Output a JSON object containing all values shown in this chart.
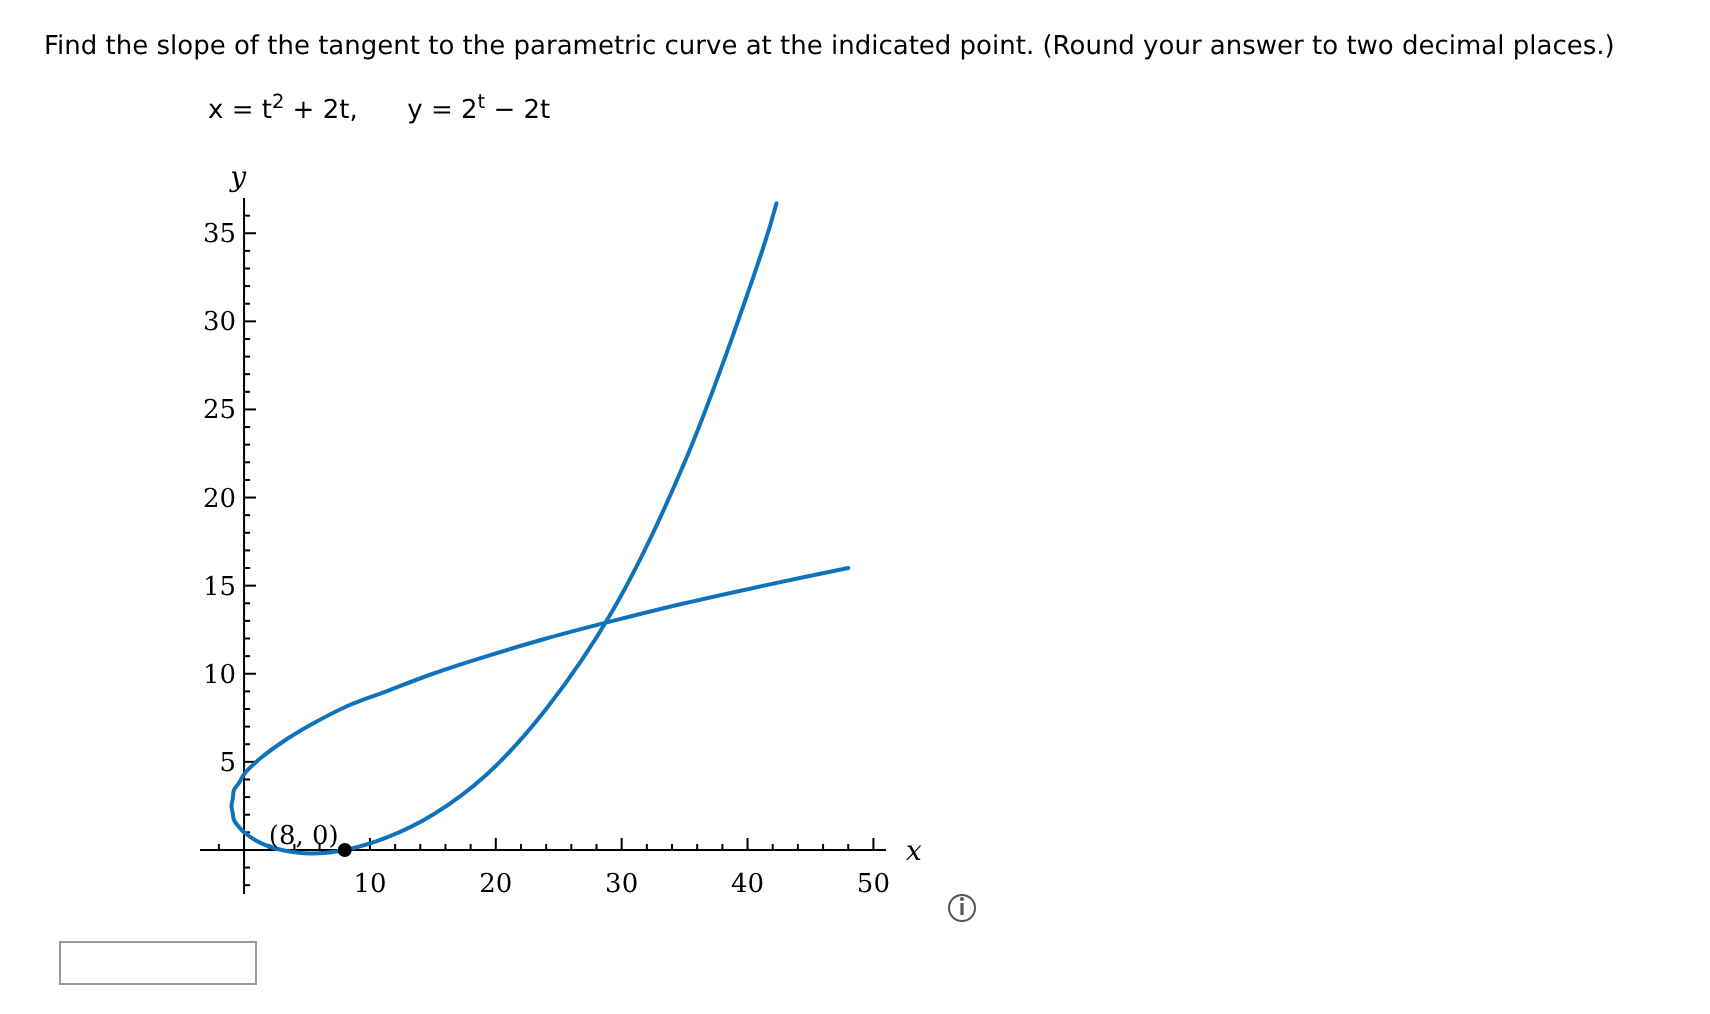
{
  "chart_data": {
    "type": "line",
    "title": "Find the slope of the tangent to the parametric curve at the indicated point. (Round your answer to two decimal places.)",
    "subtitle": "x = t$^{2}$ + 2t,      y = 2$^{t}$ − 2t",
    "xlabel": "x",
    "ylabel": "y",
    "xlim": [
      -3.5,
      51
    ],
    "ylim": [
      -2.5,
      37
    ],
    "xticks": [
      {
        "value": -2,
        "label": null
      },
      {
        "value": 2,
        "label": null
      },
      {
        "value": 4,
        "label": null
      },
      {
        "value": 6,
        "label": null
      },
      {
        "value": 8,
        "label": null
      },
      10,
      {
        "value": 12,
        "label": null
      },
      {
        "value": 14,
        "label": null
      },
      {
        "value": 16,
        "label": null
      },
      {
        "value": 18,
        "label": null
      },
      20,
      {
        "value": 22,
        "label": null
      },
      {
        "value": 24,
        "label": null
      },
      {
        "value": 26,
        "label": null
      },
      {
        "value": 28,
        "label": null
      },
      30,
      {
        "value": 32,
        "label": null
      },
      {
        "value": 34,
        "label": null
      },
      {
        "value": 36,
        "label": null
      },
      {
        "value": 38,
        "label": null
      },
      40,
      {
        "value": 42,
        "label": null
      },
      {
        "value": 44,
        "label": null
      },
      {
        "value": 46,
        "label": null
      },
      {
        "value": 48,
        "label": null
      },
      50
    ],
    "yticks": [
      {
        "value": -2,
        "label": null
      },
      {
        "value": -1,
        "label": null
      },
      {
        "value": 1,
        "label": null
      },
      {
        "value": 2,
        "label": null
      },
      {
        "value": 3,
        "label": null
      },
      {
        "value": 4,
        "label": null
      },
      5,
      {
        "value": 6,
        "label": null
      },
      {
        "value": 7,
        "label": null
      },
      {
        "value": 8,
        "label": null
      },
      {
        "value": 9,
        "label": null
      },
      10,
      {
        "value": 11,
        "label": null
      },
      {
        "value": 12,
        "label": null
      },
      {
        "value": 13,
        "label": null
      },
      {
        "value": 14,
        "label": null
      },
      15,
      {
        "value": 16,
        "label": null
      },
      {
        "value": 17,
        "label": null
      },
      {
        "value": 18,
        "label": null
      },
      {
        "value": 19,
        "label": null
      },
      20,
      {
        "value": 21,
        "label": null
      },
      {
        "value": 22,
        "label": null
      },
      {
        "value": 23,
        "label": null
      },
      {
        "value": 24,
        "label": null
      },
      25,
      {
        "value": 26,
        "label": null
      },
      {
        "value": 27,
        "label": null
      },
      {
        "value": 28,
        "label": null
      },
      {
        "value": 29,
        "label": null
      },
      30,
      {
        "value": 31,
        "label": null
      },
      {
        "value": 32,
        "label": null
      },
      {
        "value": 33,
        "label": null
      },
      {
        "value": 34,
        "label": null
      },
      35,
      {
        "value": 36,
        "label": null
      }
    ],
    "series": [
      {
        "color": "#0f72bb",
        "x": [
          48,
          41.3,
          35,
          29.3,
          24,
          19.3,
          15,
          11.3,
          8,
          5.3,
          3,
          1.3,
          0,
          -0.4,
          -0.8,
          -0.9,
          -1,
          -0.9,
          -0.8,
          -0.4,
          0,
          1.3,
          3,
          5.3,
          8,
          11.3,
          15,
          19.3,
          24,
          29.3,
          35,
          41.3,
          42.3
        ],
        "values": [
          16,
          15,
          14,
          13,
          12,
          11,
          10,
          9,
          8.1,
          7.1,
          6.1,
          5.2,
          4.3,
          3.8,
          3.4,
          2.9,
          2.5,
          2.1,
          1.7,
          1.3,
          1,
          0.4,
          0,
          -0.2,
          0,
          0.7,
          2,
          4.3,
          8,
          13.6,
          22,
          34.3,
          36.7
        ]
      },
      {
        "type": "scatter",
        "color": "#000000",
        "marker": "circle",
        "x": [
          8
        ],
        "values": [
          0
        ]
      }
    ],
    "annotations": [
      {
        "text": "(8, 0)",
        "x": 8,
        "y": 0
      }
    ],
    "marker": "none",
    "line_style": "solid",
    "grid": false
  }
}
